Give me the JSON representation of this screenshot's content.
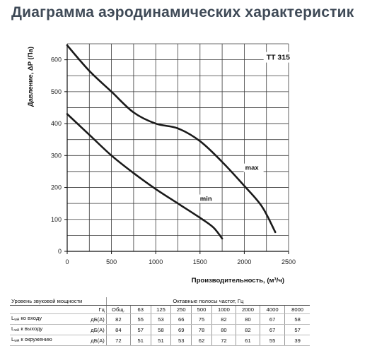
{
  "page": {
    "title": "Диаграмма аэродинамических характеристик"
  },
  "chart_data": {
    "type": "line",
    "title": "",
    "model_label": "TT 315",
    "xlabel": "Производительность, (м³/ч)",
    "ylabel": "Давление, ΔP (Па)",
    "xlim": [
      0,
      2500
    ],
    "ylim": [
      0,
      650
    ],
    "x_ticks": [
      0,
      500,
      1000,
      1500,
      2000,
      2500
    ],
    "y_ticks": [
      0,
      100,
      200,
      300,
      400,
      500,
      600
    ],
    "grid": true,
    "series": [
      {
        "name": "max",
        "color": "#1a1a1a",
        "x": [
          0,
          250,
          500,
          750,
          1000,
          1250,
          1500,
          1750,
          2000,
          2200,
          2350
        ],
        "y": [
          645,
          565,
          500,
          435,
          400,
          385,
          345,
          280,
          205,
          140,
          60
        ]
      },
      {
        "name": "min",
        "color": "#1a1a1a",
        "x": [
          0,
          250,
          500,
          750,
          1000,
          1250,
          1500,
          1650,
          1750
        ],
        "y": [
          430,
          365,
          300,
          245,
          195,
          150,
          105,
          75,
          40
        ]
      }
    ]
  },
  "noise_table": {
    "header": {
      "title": "Уровень звуковой мощности",
      "unit": "Гц",
      "bands_caption": "Октавные полосы частот, Гц",
      "bands": [
        "Общ.",
        "63",
        "125",
        "250",
        "500",
        "1000",
        "2000",
        "4000",
        "8000"
      ]
    },
    "rows": [
      {
        "prefix": "L",
        "sub": "wA",
        "label": "ко входу",
        "unit": "дБ(A)",
        "values": [
          "82",
          "55",
          "53",
          "66",
          "75",
          "82",
          "80",
          "67",
          "58"
        ]
      },
      {
        "prefix": "L",
        "sub": "wA",
        "label": "к выходу",
        "unit": "дБ(A)",
        "values": [
          "84",
          "57",
          "58",
          "69",
          "78",
          "80",
          "82",
          "67",
          "57"
        ]
      },
      {
        "prefix": "L",
        "sub": "wA",
        "label": "к окружению",
        "unit": "дБ(A)",
        "values": [
          "72",
          "51",
          "51",
          "53",
          "62",
          "72",
          "61",
          "55",
          "39"
        ]
      }
    ]
  }
}
